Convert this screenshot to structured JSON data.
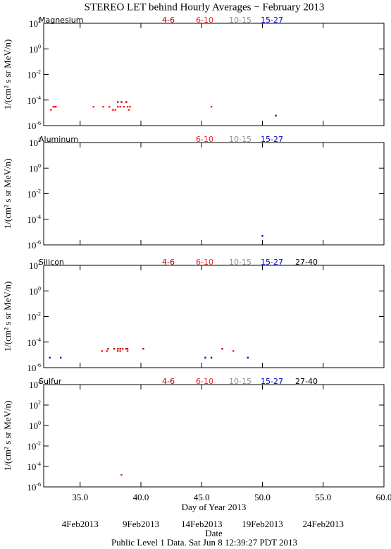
{
  "title": "STEREO LET behind Hourly Averages − February 2013",
  "footer": "Public Level 1 Data. Sat Jun  8 12:39:27 PDT 2013",
  "chart_data": [
    {
      "type": "scatter",
      "title": "Magnesium",
      "ylabel": "1/(cm² s sr MeV/n)",
      "log_y": true,
      "xlim": [
        32,
        60
      ],
      "xticks": [
        35,
        40,
        45,
        50,
        55,
        60
      ],
      "ylim": [
        1e-06,
        100
      ],
      "yticks": [
        {
          "value": 1e-06,
          "label": "10^-6"
        },
        {
          "value": 0.0001,
          "label": "10^-4"
        },
        {
          "value": 0.01,
          "label": "10^-2"
        },
        {
          "value": 1,
          "label": "10^0"
        },
        {
          "value": 100,
          "label": "10^2"
        }
      ],
      "series": [
        {
          "name": "4-6",
          "color": "#b00000",
          "x": [
            38.1,
            38.4,
            38.8
          ],
          "values": [
            7e-05,
            7e-05,
            7e-05
          ]
        },
        {
          "name": "6-10",
          "color": "#ff1a1a",
          "x": [
            32.6,
            32.8,
            32.9,
            33.0,
            36.1,
            36.9,
            37.4,
            37.7,
            37.9,
            38.1,
            38.3,
            38.6,
            38.9,
            39.0,
            39.1,
            45.8
          ],
          "values": [
            1.7e-05,
            3e-05,
            3e-05,
            3e-05,
            3e-05,
            3e-05,
            3e-05,
            1.7e-05,
            1.7e-05,
            3e-05,
            3e-05,
            3e-05,
            3e-05,
            1.7e-05,
            3e-05,
            3e-05
          ]
        },
        {
          "name": "10-15",
          "color": "#909090",
          "x": [],
          "values": []
        },
        {
          "name": "15-27",
          "color": "#0000e0",
          "x": [
            51.1
          ],
          "values": [
            6e-06
          ]
        }
      ]
    },
    {
      "type": "scatter",
      "title": "Aluminum",
      "ylabel": "1/(cm² s sr MeV/n)",
      "log_y": true,
      "xlim": [
        32,
        60
      ],
      "xticks": [
        35,
        40,
        45,
        50,
        55,
        60
      ],
      "ylim": [
        1e-06,
        100
      ],
      "yticks": [
        {
          "value": 1e-06,
          "label": "10^-6"
        },
        {
          "value": 0.0001,
          "label": "10^-4"
        },
        {
          "value": 0.01,
          "label": "10^-2"
        },
        {
          "value": 1,
          "label": "10^0"
        },
        {
          "value": 100,
          "label": "10^2"
        }
      ],
      "series": [
        {
          "name": "6-10",
          "color": "#ff1a1a",
          "x": [],
          "values": []
        },
        {
          "name": "10-15",
          "color": "#909090",
          "x": [],
          "values": []
        },
        {
          "name": "15-27",
          "color": "#0000e0",
          "x": [
            50.0
          ],
          "values": [
            5e-06
          ]
        }
      ]
    },
    {
      "type": "scatter",
      "title": "Silicon",
      "ylabel": "1/(cm² s sr MeV/n)",
      "log_y": true,
      "xlim": [
        32,
        60
      ],
      "xticks": [
        35,
        40,
        45,
        50,
        55,
        60
      ],
      "ylim": [
        1e-06,
        100
      ],
      "yticks": [
        {
          "value": 1e-06,
          "label": "10^-6"
        },
        {
          "value": 0.0001,
          "label": "10^-4"
        },
        {
          "value": 0.01,
          "label": "10^-2"
        },
        {
          "value": 1,
          "label": "10^0"
        },
        {
          "value": 100,
          "label": "10^2"
        }
      ],
      "series": [
        {
          "name": "4-6",
          "color": "#b00000",
          "x": [
            37.3,
            37.8,
            38.1,
            38.3,
            38.5,
            38.8,
            38.9,
            40.2,
            46.7
          ],
          "values": [
            3e-05,
            3e-05,
            3e-05,
            3e-05,
            3e-05,
            3e-05,
            3e-05,
            3e-05,
            3e-05
          ]
        },
        {
          "name": "6-10",
          "color": "#ff1a1a",
          "x": [
            36.8,
            37.2,
            38.1,
            38.3,
            38.9,
            47.6
          ],
          "values": [
            2e-05,
            2e-05,
            2e-05,
            2e-05,
            2e-05,
            2e-05
          ]
        },
        {
          "name": "10-15",
          "color": "#909090",
          "x": [],
          "values": []
        },
        {
          "name": "15-27",
          "color": "#0000e0",
          "x": [
            32.5,
            33.4,
            45.3,
            45.8,
            48.8
          ],
          "values": [
            6e-06,
            6e-06,
            6e-06,
            6e-06,
            6e-06
          ]
        },
        {
          "name": "27-40",
          "color": "#000000",
          "x": [],
          "values": []
        }
      ]
    },
    {
      "type": "scatter",
      "title": "Sulfur",
      "ylabel": "1/(cm² s sr MeV/n)",
      "xlabel": "Day of Year 2013",
      "log_y": true,
      "xlim": [
        32,
        60
      ],
      "xticks": [
        {
          "value": 35,
          "label": "35.0"
        },
        {
          "value": 40,
          "label": "40.0"
        },
        {
          "value": 45,
          "label": "45.0"
        },
        {
          "value": 50,
          "label": "50.0"
        },
        {
          "value": 55,
          "label": "55.0"
        },
        {
          "value": 60,
          "label": "60.0"
        }
      ],
      "date_ticks": [
        {
          "value": 35,
          "label": "4Feb2013"
        },
        {
          "value": 40,
          "label": "9Feb2013"
        },
        {
          "value": 45,
          "label": "14Feb2013"
        },
        {
          "value": 50,
          "label": "19Feb2013"
        },
        {
          "value": 55,
          "label": "24Feb2013"
        }
      ],
      "date_label": "Date",
      "ylim": [
        1e-06,
        10000
      ],
      "yticks": [
        {
          "value": 1e-06,
          "label": "10^-6"
        },
        {
          "value": 0.0001,
          "label": "10^-4"
        },
        {
          "value": 0.01,
          "label": "10^-2"
        },
        {
          "value": 1,
          "label": "10^0"
        },
        {
          "value": 100,
          "label": "10^2"
        },
        {
          "value": 10000,
          "label": "10^4"
        }
      ],
      "series": [
        {
          "name": "4-6",
          "color": "#b00000",
          "x": [],
          "values": []
        },
        {
          "name": "6-10",
          "color": "#ff1a1a",
          "x": [
            38.4
          ],
          "values": [
            1.5e-05
          ]
        },
        {
          "name": "10-15",
          "color": "#909090",
          "x": [],
          "values": []
        },
        {
          "name": "15-27",
          "color": "#0000e0",
          "x": [],
          "values": []
        },
        {
          "name": "27-40",
          "color": "#000000",
          "x": [],
          "values": []
        }
      ]
    }
  ]
}
